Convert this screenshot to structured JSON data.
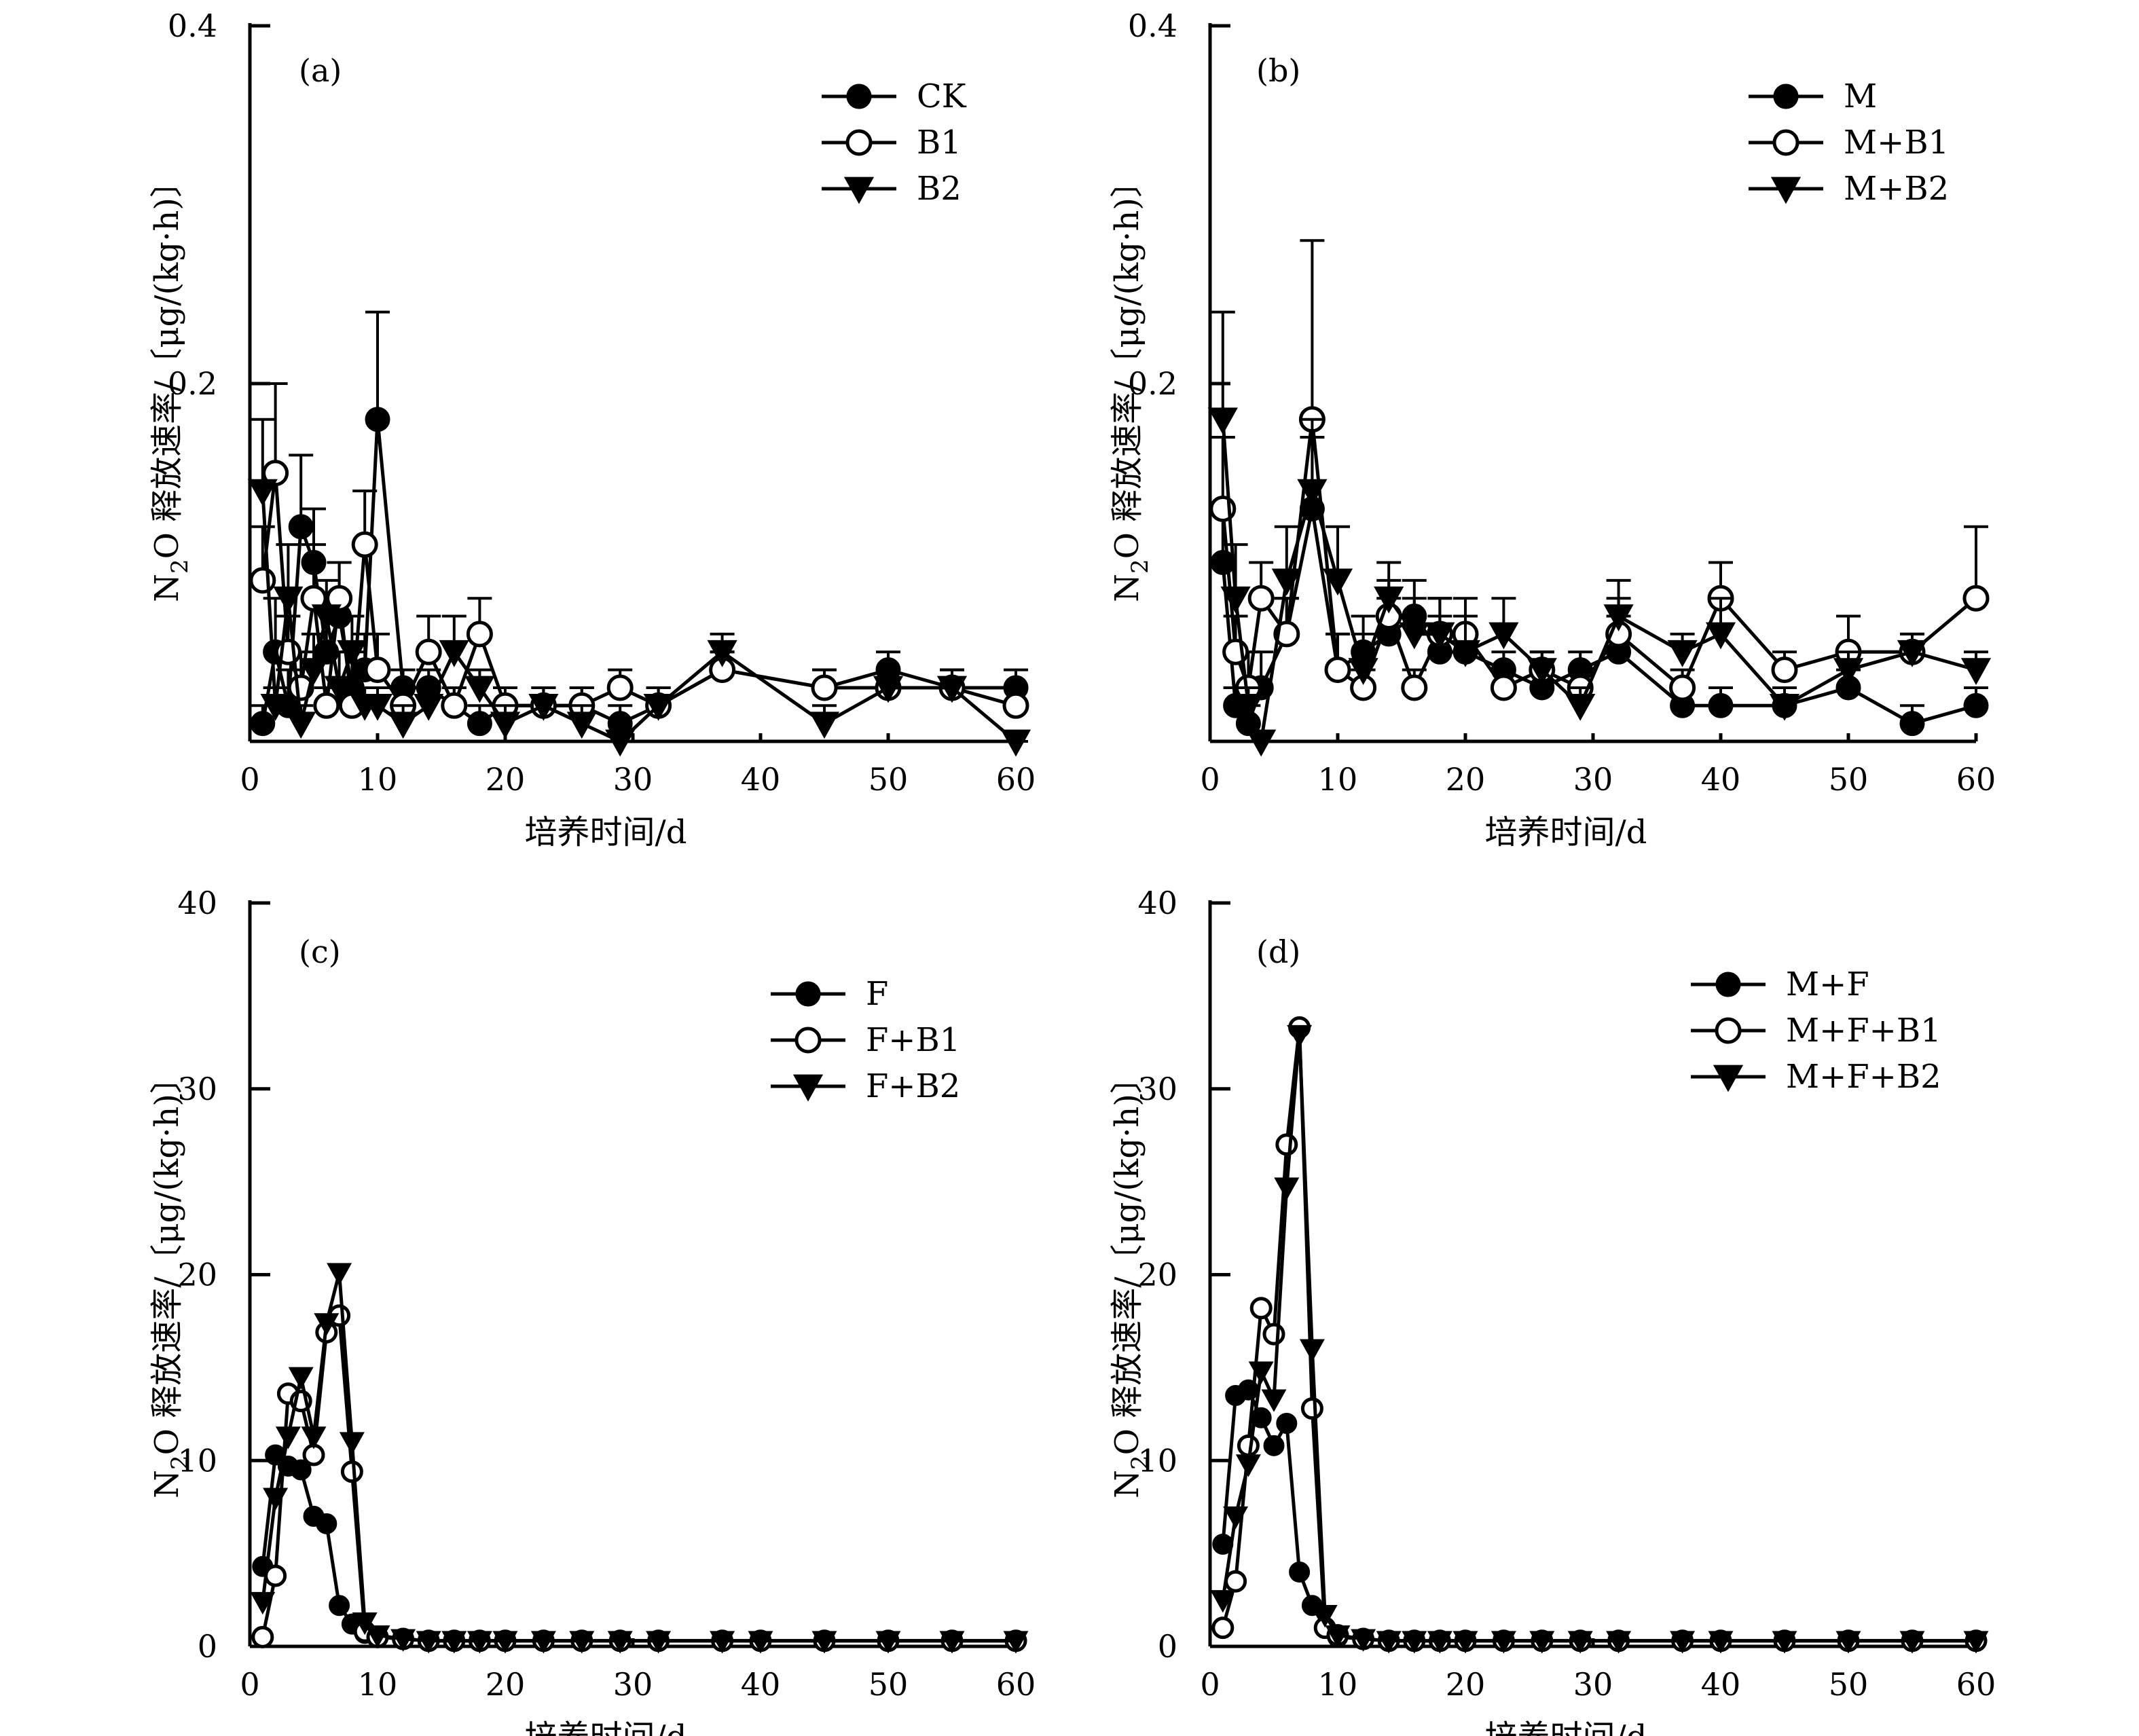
{
  "figure": {
    "xlabel": "培养时间/d",
    "ylabel_prefix": "N",
    "ylabel_sub": "2",
    "ylabel_suffix": "O 释放速率/〔μg/(kg·h)〕"
  },
  "chart_data": [
    {
      "id": "a",
      "type": "line",
      "panel_label": "(a)",
      "xlabel": "培养时间/d",
      "ylabel": "N2O 释放速率/〔μg/(kg·h)〕",
      "xlim": [
        0,
        60
      ],
      "ylim": [
        0,
        0.4
      ],
      "xticks": [
        0,
        10,
        20,
        30,
        40,
        50,
        60
      ],
      "xtick_labels": [
        "0",
        "10",
        "20",
        "30",
        "40",
        "50",
        "60"
      ],
      "yticks": [
        0.2,
        0.4
      ],
      "ytick_labels": [
        "0.2",
        "0.4"
      ],
      "error_bars": true,
      "series": [
        {
          "name": "CK",
          "marker": "filled-circle",
          "x": [
            1,
            2,
            3,
            4,
            5,
            6,
            7,
            8,
            9,
            10,
            12,
            14,
            16,
            18,
            20,
            23,
            26,
            29,
            32,
            37,
            45,
            50,
            55,
            60
          ],
          "y": [
            0.01,
            0.05,
            0.02,
            0.12,
            0.1,
            0.05,
            0.07,
            0.03,
            0.04,
            0.18,
            0.03,
            0.03,
            0.02,
            0.01,
            0.02,
            0.02,
            0.02,
            0.01,
            0.02,
            0.04,
            0.03,
            0.04,
            0.03,
            0.03
          ],
          "err": [
            0.01,
            0.03,
            0.02,
            0.04,
            0.03,
            0.03,
            0.03,
            0.02,
            0.02,
            0.06,
            0.01,
            0.01,
            0.01,
            0.01,
            0.01,
            0.01,
            0.01,
            0.01,
            0.01,
            0.01,
            0.01,
            0.01,
            0.01,
            0.01
          ]
        },
        {
          "name": "B1",
          "marker": "open-circle",
          "x": [
            1,
            2,
            3,
            4,
            5,
            6,
            7,
            8,
            9,
            10,
            12,
            14,
            16,
            18,
            20,
            23,
            26,
            29,
            32,
            37,
            45,
            50,
            55,
            60
          ],
          "y": [
            0.09,
            0.15,
            0.05,
            0.03,
            0.08,
            0.02,
            0.08,
            0.02,
            0.11,
            0.04,
            0.02,
            0.05,
            0.02,
            0.06,
            0.02,
            0.02,
            0.02,
            0.03,
            0.02,
            0.04,
            0.03,
            0.03,
            0.03,
            0.02
          ],
          "err": [
            0.03,
            0.05,
            0.02,
            0.02,
            0.03,
            0.01,
            0.02,
            0.01,
            0.03,
            0.02,
            0.01,
            0.02,
            0.01,
            0.02,
            0.01,
            0.01,
            0.01,
            0.01,
            0.01,
            0.01,
            0.01,
            0.01,
            0.01,
            0.01
          ]
        },
        {
          "name": "B2",
          "marker": "filled-triangle-down",
          "x": [
            1,
            2,
            3,
            4,
            5,
            6,
            7,
            8,
            9,
            10,
            12,
            14,
            16,
            18,
            20,
            23,
            26,
            29,
            32,
            37,
            45,
            50,
            55,
            60
          ],
          "y": [
            0.14,
            0.02,
            0.08,
            0.01,
            0.04,
            0.07,
            0.03,
            0.05,
            0.02,
            0.02,
            0.01,
            0.02,
            0.05,
            0.03,
            0.01,
            0.02,
            0.01,
            0.0,
            0.02,
            0.05,
            0.01,
            0.03,
            0.03,
            0.0
          ],
          "err": [
            0.04,
            0.01,
            0.03,
            0.01,
            0.02,
            0.02,
            0.02,
            0.02,
            0.01,
            0.01,
            0.01,
            0.01,
            0.02,
            0.01,
            0.01,
            0.01,
            0.01,
            0.0,
            0.01,
            0.01,
            0.01,
            0.01,
            0.01,
            0.0
          ]
        }
      ]
    },
    {
      "id": "b",
      "type": "line",
      "panel_label": "(b)",
      "xlabel": "培养时间/d",
      "ylabel": "N2O 释放速率/〔μg/(kg·h)〕",
      "xlim": [
        0,
        60
      ],
      "ylim": [
        0,
        0.4
      ],
      "xticks": [
        0,
        10,
        20,
        30,
        40,
        50,
        60
      ],
      "xtick_labels": [
        "0",
        "10",
        "20",
        "30",
        "40",
        "50",
        "60"
      ],
      "yticks": [
        0.2,
        0.4
      ],
      "ytick_labels": [
        "0.2",
        "0.4"
      ],
      "error_bars": true,
      "series": [
        {
          "name": "M",
          "marker": "filled-circle",
          "x": [
            1,
            2,
            3,
            4,
            6,
            8,
            10,
            12,
            14,
            16,
            18,
            20,
            23,
            26,
            29,
            32,
            37,
            40,
            45,
            50,
            55,
            60
          ],
          "y": [
            0.1,
            0.02,
            0.01,
            0.03,
            0.06,
            0.13,
            0.04,
            0.05,
            0.06,
            0.07,
            0.05,
            0.05,
            0.04,
            0.03,
            0.04,
            0.05,
            0.02,
            0.02,
            0.02,
            0.03,
            0.01,
            0.02
          ],
          "err": [
            0.03,
            0.01,
            0.01,
            0.02,
            0.02,
            0.04,
            0.02,
            0.02,
            0.02,
            0.02,
            0.02,
            0.02,
            0.01,
            0.01,
            0.01,
            0.02,
            0.01,
            0.01,
            0.01,
            0.01,
            0.01,
            0.01
          ]
        },
        {
          "name": "M+B1",
          "marker": "open-circle",
          "x": [
            1,
            2,
            3,
            4,
            6,
            8,
            10,
            12,
            14,
            16,
            18,
            20,
            23,
            26,
            29,
            32,
            37,
            40,
            45,
            50,
            55,
            60
          ],
          "y": [
            0.13,
            0.05,
            0.03,
            0.08,
            0.06,
            0.18,
            0.04,
            0.03,
            0.07,
            0.03,
            0.06,
            0.06,
            0.03,
            0.04,
            0.03,
            0.06,
            0.03,
            0.08,
            0.04,
            0.05,
            0.05,
            0.08
          ],
          "err": [
            0.04,
            0.02,
            0.02,
            0.02,
            0.02,
            0.1,
            0.02,
            0.01,
            0.02,
            0.01,
            0.02,
            0.02,
            0.01,
            0.01,
            0.01,
            0.02,
            0.01,
            0.02,
            0.01,
            0.02,
            0.01,
            0.04
          ]
        },
        {
          "name": "M+B2",
          "marker": "filled-triangle-down",
          "x": [
            1,
            2,
            3,
            4,
            6,
            8,
            10,
            12,
            14,
            16,
            18,
            20,
            23,
            26,
            29,
            32,
            37,
            40,
            45,
            50,
            55,
            60
          ],
          "y": [
            0.18,
            0.08,
            0.02,
            0.0,
            0.09,
            0.14,
            0.09,
            0.04,
            0.08,
            0.06,
            0.06,
            0.05,
            0.06,
            0.04,
            0.02,
            0.07,
            0.05,
            0.06,
            0.02,
            0.04,
            0.05,
            0.04
          ],
          "err": [
            0.06,
            0.03,
            0.01,
            0.0,
            0.03,
            0.04,
            0.03,
            0.02,
            0.02,
            0.02,
            0.02,
            0.02,
            0.02,
            0.01,
            0.01,
            0.02,
            0.01,
            0.02,
            0.01,
            0.01,
            0.01,
            0.01
          ]
        }
      ]
    },
    {
      "id": "c",
      "type": "line",
      "panel_label": "(c)",
      "xlabel": "培养时间/d",
      "ylabel": "N2O 释放速率/〔μg/(kg·h)〕",
      "xlim": [
        0,
        60
      ],
      "ylim": [
        0,
        40
      ],
      "xticks": [
        0,
        10,
        20,
        30,
        40,
        50,
        60
      ],
      "xtick_labels": [
        "0",
        "10",
        "20",
        "30",
        "40",
        "50",
        "60"
      ],
      "yticks": [
        0,
        10,
        20,
        30,
        40
      ],
      "ytick_labels": [
        "0",
        "10",
        "20",
        "30",
        "40"
      ],
      "error_bars": false,
      "series": [
        {
          "name": "F",
          "marker": "filled-circle",
          "x": [
            1,
            2,
            3,
            4,
            5,
            6,
            7,
            8,
            9,
            10,
            12,
            14,
            16,
            18,
            20,
            23,
            26,
            29,
            32,
            37,
            40,
            45,
            50,
            55,
            60
          ],
          "y": [
            4.3,
            10.3,
            9.7,
            9.5,
            7.0,
            6.6,
            2.2,
            1.2,
            0.7,
            0.5,
            0.4,
            0.3,
            0.3,
            0.3,
            0.3,
            0.3,
            0.3,
            0.3,
            0.3,
            0.3,
            0.3,
            0.3,
            0.3,
            0.3,
            0.3
          ]
        },
        {
          "name": "F+B1",
          "marker": "open-circle",
          "x": [
            1,
            2,
            3,
            4,
            5,
            6,
            7,
            8,
            9,
            10,
            12,
            14,
            16,
            18,
            20,
            23,
            26,
            29,
            32,
            37,
            40,
            45,
            50,
            55,
            60
          ],
          "y": [
            0.5,
            3.8,
            13.6,
            13.2,
            10.3,
            16.9,
            17.8,
            9.4,
            0.8,
            0.5,
            0.4,
            0.3,
            0.3,
            0.3,
            0.3,
            0.3,
            0.3,
            0.3,
            0.3,
            0.3,
            0.3,
            0.3,
            0.3,
            0.3,
            0.3
          ]
        },
        {
          "name": "F+B2",
          "marker": "filled-triangle-down",
          "x": [
            1,
            2,
            3,
            4,
            5,
            6,
            7,
            8,
            9,
            10,
            12,
            14,
            16,
            18,
            20,
            23,
            26,
            29,
            32,
            37,
            40,
            45,
            50,
            55,
            60
          ],
          "y": [
            2.4,
            8.0,
            11.3,
            14.5,
            11.3,
            17.4,
            20.1,
            11.0,
            1.3,
            0.6,
            0.4,
            0.3,
            0.3,
            0.3,
            0.3,
            0.3,
            0.3,
            0.3,
            0.3,
            0.3,
            0.3,
            0.3,
            0.3,
            0.3,
            0.3
          ]
        }
      ]
    },
    {
      "id": "d",
      "type": "line",
      "panel_label": "(d)",
      "xlabel": "培养时间/d",
      "ylabel": "N2O 释放速率/〔μg/(kg·h)〕",
      "xlim": [
        0,
        60
      ],
      "ylim": [
        0,
        40
      ],
      "xticks": [
        0,
        10,
        20,
        30,
        40,
        50,
        60
      ],
      "xtick_labels": [
        "0",
        "10",
        "20",
        "30",
        "40",
        "50",
        "60"
      ],
      "yticks": [
        0,
        10,
        20,
        30,
        40
      ],
      "ytick_labels": [
        "0",
        "10",
        "20",
        "30",
        "40"
      ],
      "error_bars": false,
      "series": [
        {
          "name": "M+F",
          "marker": "filled-circle",
          "x": [
            1,
            2,
            3,
            4,
            5,
            6,
            7,
            8,
            9,
            10,
            12,
            14,
            16,
            18,
            20,
            23,
            26,
            29,
            32,
            37,
            40,
            45,
            50,
            55,
            60
          ],
          "y": [
            5.5,
            13.5,
            13.8,
            12.3,
            10.8,
            12.0,
            4.0,
            2.2,
            1.0,
            0.5,
            0.4,
            0.3,
            0.3,
            0.3,
            0.3,
            0.3,
            0.3,
            0.3,
            0.3,
            0.3,
            0.3,
            0.3,
            0.3,
            0.3,
            0.3
          ]
        },
        {
          "name": "M+F+B1",
          "marker": "open-circle",
          "x": [
            1,
            2,
            3,
            4,
            5,
            6,
            7,
            8,
            9,
            10,
            12,
            14,
            16,
            18,
            20,
            23,
            26,
            29,
            32,
            37,
            40,
            45,
            50,
            55,
            60
          ],
          "y": [
            1.0,
            3.5,
            10.8,
            18.2,
            16.8,
            27.0,
            33.3,
            12.8,
            1.0,
            0.6,
            0.4,
            0.3,
            0.3,
            0.3,
            0.3,
            0.3,
            0.3,
            0.3,
            0.3,
            0.3,
            0.3,
            0.3,
            0.3,
            0.3,
            0.3
          ]
        },
        {
          "name": "M+F+B2",
          "marker": "filled-triangle-down",
          "x": [
            1,
            2,
            3,
            4,
            5,
            6,
            7,
            8,
            9,
            10,
            12,
            14,
            16,
            18,
            20,
            23,
            26,
            29,
            32,
            37,
            40,
            45,
            50,
            55,
            60
          ],
          "y": [
            2.5,
            7.0,
            9.8,
            14.8,
            13.3,
            24.7,
            32.9,
            16.0,
            1.7,
            0.6,
            0.4,
            0.3,
            0.3,
            0.3,
            0.3,
            0.3,
            0.3,
            0.3,
            0.3,
            0.3,
            0.3,
            0.3,
            0.3,
            0.3,
            0.3
          ]
        }
      ]
    }
  ]
}
